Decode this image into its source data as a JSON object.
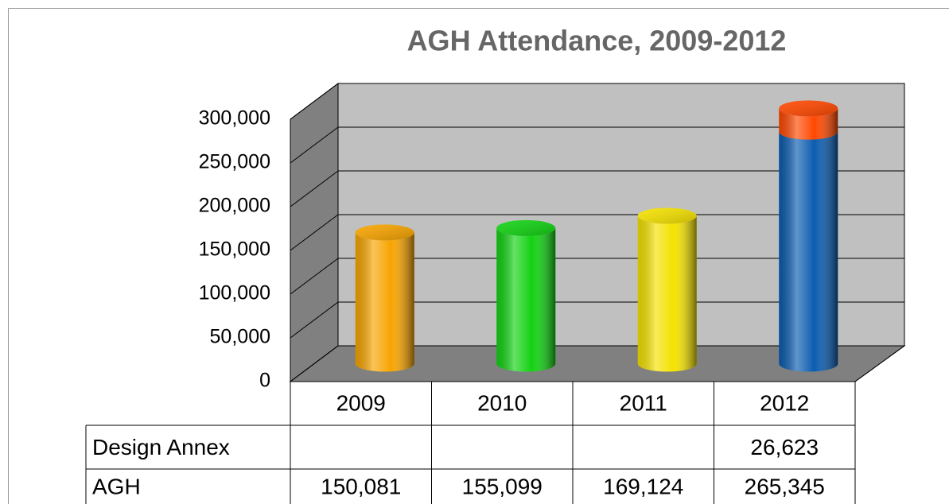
{
  "chart_data": {
    "type": "bar3d_stacked",
    "title": "AGH Attendance, 2009-2012",
    "categories": [
      "2009",
      "2010",
      "2011",
      "2012"
    ],
    "series": [
      {
        "name": "AGH",
        "colors": [
          "#f7a400",
          "#12d212",
          "#f4e200",
          "#0b5cb0"
        ],
        "values": [
          150081,
          155099,
          169124,
          265345
        ],
        "value_labels": [
          "150,081",
          "155,099",
          "169,124",
          "265,345"
        ]
      },
      {
        "name": "Design Annex",
        "color": "#ff4800",
        "values": [
          null,
          null,
          null,
          26623
        ],
        "value_labels": [
          null,
          null,
          null,
          "26,623"
        ]
      }
    ],
    "ylim": [
      0,
      300000
    ],
    "yticks": [
      0,
      {
        "value": 50000,
        "label": "50,000"
      },
      {
        "value": 100000,
        "label": "100,000"
      },
      {
        "value": 150000,
        "label": "150,000"
      },
      {
        "value": 200000,
        "label": "200,000"
      },
      {
        "value": 250000,
        "label": "250,000"
      },
      {
        "value": 300000,
        "label": "300,000"
      }
    ],
    "grid": true
  }
}
